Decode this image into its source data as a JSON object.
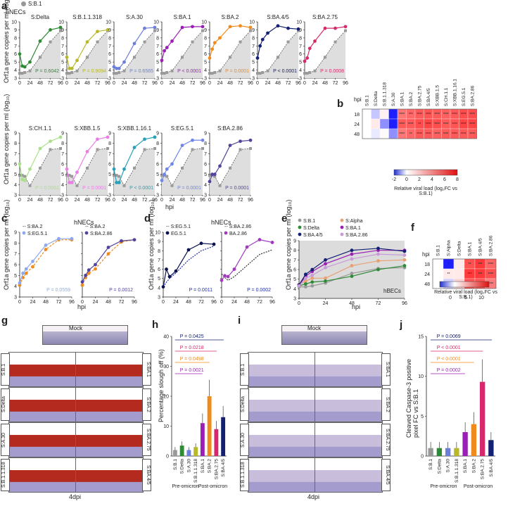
{
  "panel_letters": {
    "a": "a",
    "b": "b",
    "c": "c",
    "d": "d",
    "e": "e",
    "f": "f",
    "g": "g",
    "h": "h",
    "i": "i",
    "j": "j"
  },
  "top_legend": {
    "label": "S:B.1",
    "color": "#999999"
  },
  "a": {
    "title": "hNECs",
    "xlabel": "hpi",
    "ylabel": "Orf1a gene copies per ml (log₁₀)",
    "x": [
      0,
      6,
      12,
      24,
      48,
      72,
      96
    ],
    "xticks": [
      0,
      24,
      48,
      72,
      96
    ],
    "ylim": [
      3,
      10
    ],
    "baseline": [
      3.6,
      3.6,
      3.7,
      3.9,
      5.6,
      7.5,
      8.9
    ],
    "row2_baseline": [
      4.9,
      4.9,
      4.8,
      3.9,
      5.6,
      7.4,
      7.5
    ],
    "row1": [
      {
        "name": "S:Delta",
        "color": "#2e8b35",
        "y": [
          6,
          4.5,
          4.4,
          5,
          7.6,
          9,
          9.3
        ],
        "p": "P = 0.6042"
      },
      {
        "name": "S:B.1.1.318",
        "color": "#b8b82a",
        "y": [
          5.6,
          4.2,
          4.2,
          5.2,
          7.5,
          8.8,
          9
        ],
        "p": "P = 0.9094"
      },
      {
        "name": "S:A.30",
        "color": "#6c7fd9",
        "y": [
          4.4,
          4.2,
          4.2,
          5,
          7.3,
          9.2,
          9.3
        ],
        "p": "P = 0.6565"
      },
      {
        "name": "S:BA.1",
        "color": "#9b1fb5",
        "y": [
          5.2,
          6.4,
          6.8,
          7.6,
          9.3,
          9.4,
          9.4
        ],
        "p": "P < 0.0001"
      },
      {
        "name": "S:BA.2",
        "color": "#f08a1c",
        "y": [
          5.5,
          6.6,
          7.4,
          8,
          9.4,
          9.5,
          9.3
        ],
        "p": "P = 0.0001"
      },
      {
        "name": "S:BA.4/5",
        "color": "#142070",
        "y": [
          5.5,
          7,
          7.8,
          8.6,
          9.5,
          9.2,
          9.1
        ],
        "p": "P < 0.0001"
      },
      {
        "name": "S:BA.2.75",
        "color": "#d6286a",
        "y": [
          5.1,
          5.5,
          6.7,
          7.6,
          9.2,
          9.2,
          9.4
        ],
        "p": "P = 0.0008"
      }
    ],
    "row2": [
      {
        "name": "S:CH.1.1",
        "color": "#a9e08a",
        "y": [
          6,
          4.5,
          4.4,
          5.5,
          7.5,
          8.2,
          8.6
        ],
        "p": "P = 0.0001"
      },
      {
        "name": "S:XBB.1.5",
        "color": "#e87ee6",
        "y": [
          5.5,
          4.2,
          4.2,
          5.2,
          7.2,
          8.4,
          8.6
        ],
        "p": "P = 0.0001"
      },
      {
        "name": "S:XBB.1.16.1",
        "color": "#2aa0b8",
        "y": [
          5.5,
          4.2,
          4.2,
          5.5,
          7.6,
          8.4,
          8.6
        ],
        "p": "P < 0.0001"
      },
      {
        "name": "S:EG.5.1",
        "color": "#6f86e8",
        "y": [
          4.4,
          5,
          5.5,
          6,
          7.8,
          8.3,
          8.3
        ],
        "p": "P = 0.0001"
      },
      {
        "name": "S:BA.2.86",
        "color": "#50449c",
        "y": [
          4.3,
          5,
          5,
          5.8,
          7.8,
          8.2,
          8.3
        ],
        "p": "P = 0.0001"
      }
    ]
  },
  "b": {
    "columns": [
      "S:B.1",
      "S:Delta",
      "S:B.1.1.318",
      "S:A.30",
      "S:BA.1",
      "S:BA.2",
      "S:BA.2.75",
      "S:BA.4/5",
      "S:XBB.1.5",
      "S:CH.1.1",
      "S:XBB.1.16.1",
      "S:EG.5.1",
      "S:BA.2.86"
    ],
    "rows": [
      "18",
      "24",
      "48"
    ],
    "row_title": "hpi",
    "values": [
      [
        0,
        -0.5,
        0.5,
        -2,
        5,
        5.5,
        6,
        6.2,
        6,
        5.8,
        6,
        6.5,
        6.5
      ],
      [
        0,
        0.8,
        -1,
        -3,
        6,
        6,
        6.5,
        6.8,
        6.5,
        6,
        6.2,
        6.8,
        6.8
      ],
      [
        0,
        -0.2,
        0.2,
        -1,
        5,
        5.5,
        6,
        6,
        5.8,
        6,
        6,
        6,
        6
      ]
    ],
    "stars": [
      [
        "",
        "",
        "",
        "",
        "****",
        "***",
        "****",
        "****",
        "****",
        "****",
        "****",
        "****",
        "****"
      ],
      [
        "",
        "",
        "",
        "",
        "****",
        "****",
        "**",
        "****",
        "****",
        "****",
        "****",
        "****",
        "****"
      ],
      [
        "",
        "",
        "",
        "",
        "****",
        "**",
        "****",
        "****",
        "****",
        "****",
        "****",
        "****",
        "****"
      ]
    ],
    "cbar_ticks": [
      "-2",
      "0",
      "2",
      "4",
      "6",
      "8"
    ],
    "cbar_label": "Relative viral load (log₂FC vs S:B.1)"
  },
  "c": {
    "title": "hNECs",
    "xlabel": "hpi",
    "ylabel": "Orf1a gene copies per ml (log₁₀)",
    "x": [
      0,
      6,
      12,
      24,
      48,
      72,
      96
    ],
    "ylim": [
      3,
      9
    ],
    "left": {
      "base": {
        "name": "S:BA.2",
        "color": "#f08a1c",
        "y": [
          4.1,
          4.8,
          5.2,
          5.8,
          7.4,
          8.3,
          8.3
        ]
      },
      "var": {
        "name": "S:EG.5.1",
        "color": "#8ea8f0",
        "y": [
          4.3,
          5.2,
          5.6,
          6.3,
          7.8,
          8.4,
          8.4
        ]
      },
      "p": "P = 0.0559"
    },
    "right": {
      "base": {
        "name": "S:BA.2",
        "color": "#f08a1c",
        "y": [
          4.1,
          4.8,
          5.2,
          5.6,
          7,
          8.1,
          8.3
        ]
      },
      "var": {
        "name": "S:BA.2.86",
        "color": "#50449c",
        "y": [
          4.4,
          5,
          5.5,
          6,
          7.6,
          8.2,
          8.3
        ]
      },
      "p": "P = 0.0012"
    }
  },
  "d": {
    "title": "hNECs",
    "xlabel": "hpi",
    "ylabel": "Orf1a gene copies per ml (log₁₀)",
    "x": [
      0,
      6,
      12,
      24,
      48,
      72,
      96
    ],
    "ylim": [
      3,
      10
    ],
    "left": {
      "base": {
        "name": "S:EG.5.1",
        "color": "#2030a0",
        "y": [
          4.1,
          4.6,
          5,
          5.6,
          7,
          8,
          8.5
        ]
      },
      "var": {
        "name": "EG.5.1",
        "color": "#0a1250",
        "y": [
          4.1,
          6,
          5.2,
          5.8,
          8.1,
          8.8,
          8.7
        ]
      },
      "p": "P = 0.0011"
    },
    "right": {
      "base": {
        "name": "S:BA.2.86",
        "color": "#333333",
        "y": [
          5.5,
          5.1,
          4.8,
          5.2,
          6.4,
          7.6,
          8.1
        ]
      },
      "var": {
        "name": "BA.2.86",
        "color": "#a13ac0",
        "y": [
          4.8,
          5.3,
          5.2,
          6,
          8.4,
          9.2,
          8.9
        ]
      },
      "p": "P = 0.0002"
    }
  },
  "e": {
    "xlabel": "hpi",
    "ylabel": "Orf1a gene copies per ml (log₁₀)",
    "tag": "hBECs",
    "x": [
      0,
      6,
      12,
      24,
      48,
      72,
      96
    ],
    "ylim": [
      3,
      9
    ],
    "series": [
      {
        "name": "S:B.1",
        "color": "#999999",
        "y": [
          4.2,
          4.2,
          4.3,
          4.6,
          5.6,
          6.1,
          6.2
        ]
      },
      {
        "name": "S:Alpha",
        "color": "#e8a070",
        "y": [
          4.4,
          4.8,
          5.1,
          5.1,
          6.4,
          6.9,
          7
        ]
      },
      {
        "name": "S:Delta",
        "color": "#2e8b35",
        "y": [
          4.3,
          4.5,
          4.7,
          4.8,
          5.3,
          6,
          6.4
        ]
      },
      {
        "name": "S:BA.1",
        "color": "#9b1fb5",
        "y": [
          4.4,
          5.3,
          5.8,
          6.6,
          7.6,
          8,
          8
        ]
      },
      {
        "name": "S:BA.4/5",
        "color": "#142070",
        "y": [
          4.4,
          5.5,
          6,
          7,
          8,
          8.2,
          7.9
        ]
      },
      {
        "name": "S:BA.2.86",
        "color": "#c89ad8",
        "y": [
          4.3,
          5.1,
          5.4,
          6.2,
          7.1,
          7.6,
          7.5
        ]
      }
    ]
  },
  "f": {
    "columns": [
      "S:B.1",
      "S:Alpha",
      "S:Delta",
      "S:BA.1",
      "S:BA.4/5",
      "S:BA.2.86"
    ],
    "rows": [
      "18",
      "24",
      "48"
    ],
    "row_title": "hpi",
    "values": [
      [
        0,
        -5,
        1,
        8,
        9,
        7
      ],
      [
        0,
        1,
        1,
        9,
        9,
        8
      ],
      [
        0,
        -1,
        2,
        8,
        8,
        6
      ]
    ],
    "stars": [
      [
        "",
        "*",
        "",
        "**",
        "***",
        "****"
      ],
      [
        "",
        "**",
        "",
        "***",
        "***",
        "****"
      ],
      [
        "",
        "",
        "*",
        "***",
        "****",
        "****"
      ]
    ],
    "cbar_ticks": [
      "0",
      "5",
      "10"
    ],
    "cbar_label": "Relative viral load (log₂FC vs S:B.1)"
  },
  "g": {
    "mock": "Mock",
    "footer": "4dpi",
    "left": [
      "S:B.1",
      "S:Delta",
      "S:A.30",
      "S:B.1.1.318"
    ],
    "right": [
      "S:BA.1",
      "S:BA.2",
      "S:BA.2.75",
      "S:BA.4/5"
    ]
  },
  "h": {
    "ylabel": "Percentage slough off (%)",
    "ylim": [
      0,
      40
    ],
    "yticks": [
      "0",
      "10",
      "20",
      "30",
      "40"
    ],
    "categories": [
      "S:B.1",
      "S:Delta",
      "S:A.30",
      "S:B.1.1.318",
      "S:BA.1",
      "S:BA.2",
      "S:BA.2.75",
      "S:BA.4/5"
    ],
    "values": [
      2,
      3.5,
      2,
      3,
      11,
      20,
      9,
      13
    ],
    "colors": [
      "#999999",
      "#2e8b35",
      "#6c7fd9",
      "#b8b82a",
      "#9b1fb5",
      "#f08a1c",
      "#d6286a",
      "#142070"
    ],
    "groups": [
      "Pre-omicron",
      "Post-omicron"
    ],
    "pvals": [
      {
        "text": "P = 0.0425",
        "color": "#142070"
      },
      {
        "text": "P = 0.0218",
        "color": "#d6286a"
      },
      {
        "text": "P = 0.0498",
        "color": "#f08a1c"
      },
      {
        "text": "P = 0.0021",
        "color": "#9b1fb5"
      }
    ]
  },
  "i": {
    "mock": "Mock",
    "footer": "4dpi",
    "left": [
      "S:B.1",
      "S:Delta",
      "S:A.30",
      "S:B.1.1.318"
    ],
    "right": [
      "S:BA.1",
      "S:BA.2",
      "S:BA.2.75",
      "S:BA.4/5"
    ]
  },
  "j": {
    "ylabel": "Cleaved Caspase-3 positive pixel FC vs S:B.1",
    "ylim": [
      0,
      15
    ],
    "yticks": [
      "0",
      "5",
      "10",
      "15"
    ],
    "categories": [
      "S:B.1",
      "S:Delta",
      "S:A.30",
      "S:B.1.1.318",
      "S:BA.1",
      "S:BA.2",
      "S:BA.2.75",
      "S:BA.4/5"
    ],
    "values": [
      1,
      1,
      1,
      1,
      3,
      4,
      9.3,
      2
    ],
    "colors": [
      "#999999",
      "#2e8b35",
      "#6c7fd9",
      "#b8b82a",
      "#9b1fb5",
      "#f08a1c",
      "#d6286a",
      "#142070"
    ],
    "groups": [
      "Pre-omicron",
      "Post-omicron"
    ],
    "pvals": [
      {
        "text": "P = 0.0069",
        "color": "#142070"
      },
      {
        "text": "P < 0.0001",
        "color": "#d6286a"
      },
      {
        "text": "P < 0.0001",
        "color": "#f08a1c"
      },
      {
        "text": "P = 0.0002",
        "color": "#9b1fb5"
      }
    ]
  }
}
